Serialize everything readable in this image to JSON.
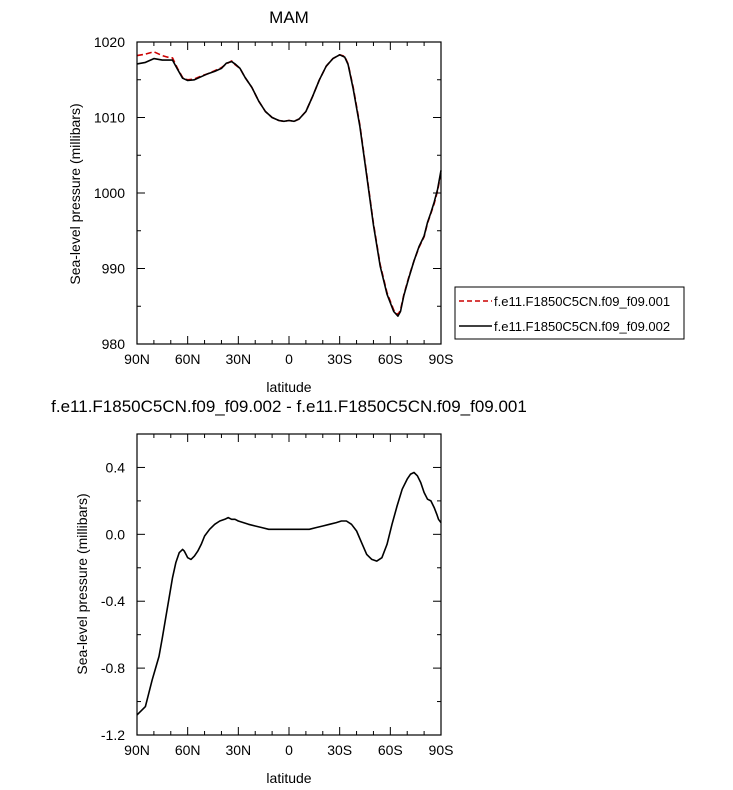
{
  "chart_data": [
    {
      "type": "line",
      "title": "MAM",
      "xlabel": "latitude",
      "ylabel": "Sea-level pressure (millibars)",
      "xlim": [
        90,
        -90
      ],
      "ylim": [
        980,
        1020
      ],
      "x_ticks": [
        90,
        60,
        30,
        0,
        -30,
        -60,
        -90
      ],
      "x_tick_labels": [
        "90N",
        "60N",
        "30N",
        "0",
        "30S",
        "60S",
        "90S"
      ],
      "y_ticks": [
        980,
        990,
        1000,
        1010,
        1020
      ],
      "y_tick_labels": [
        "980",
        "990",
        "1000",
        "1010",
        "1020"
      ],
      "legend_position": "right",
      "series": [
        {
          "name": "f.e11.F1850C5CN.f09_f09.001",
          "color": "#cc0000",
          "dash": "dashed",
          "x": [
            90,
            85,
            80,
            75,
            72,
            69,
            66,
            63,
            60,
            56,
            52,
            48,
            44,
            40,
            37,
            34,
            32,
            29,
            26,
            22,
            18,
            14,
            10,
            6,
            3,
            0,
            -3,
            -6,
            -10,
            -14,
            -18,
            -22,
            -26,
            -30,
            -33,
            -35,
            -38,
            -42,
            -46,
            -50,
            -54,
            -58,
            -62,
            -64.5,
            -66,
            -68,
            -71,
            -74,
            -77,
            -80,
            -82,
            -84,
            -86,
            -88,
            -90
          ],
          "y": [
            1018.2,
            1018.4,
            1018.7,
            1018.2,
            1018.0,
            1017.9,
            1016.5,
            1015.3,
            1015.0,
            1015.1,
            1015.5,
            1015.8,
            1016.2,
            1016.6,
            1017.1,
            1017.5,
            1017.0,
            1016.5,
            1015.3,
            1014.0,
            1012.2,
            1010.8,
            1010.0,
            1009.6,
            1009.5,
            1009.6,
            1009.5,
            1009.8,
            1010.8,
            1012.8,
            1015.0,
            1016.8,
            1017.8,
            1018.3,
            1018.1,
            1017.1,
            1014.0,
            1009.0,
            1002.5,
            996.0,
            990.5,
            986.8,
            984.5,
            983.9,
            984.5,
            986.5,
            988.9,
            991.0,
            992.8,
            994.2,
            996.0,
            997.3,
            998.6,
            1000.3,
            1002.7
          ]
        },
        {
          "name": "f.e11.F1850C5CN.f09_f09.002",
          "color": "#000000",
          "dash": "solid",
          "x": [
            90,
            85,
            80,
            75,
            72,
            69,
            66,
            63,
            60,
            56,
            52,
            48,
            44,
            40,
            37,
            34,
            32,
            29,
            26,
            22,
            18,
            14,
            10,
            6,
            3,
            0,
            -3,
            -6,
            -10,
            -14,
            -18,
            -22,
            -26,
            -30,
            -33,
            -35,
            -38,
            -42,
            -46,
            -50,
            -54,
            -58,
            -62,
            -64.5,
            -66,
            -68,
            -71,
            -74,
            -77,
            -80,
            -82,
            -84,
            -86,
            -88,
            -90
          ],
          "y": [
            1017.1,
            1017.3,
            1017.8,
            1017.6,
            1017.6,
            1017.6,
            1016.4,
            1015.2,
            1014.9,
            1015.0,
            1015.4,
            1015.8,
            1016.1,
            1016.5,
            1017.2,
            1017.4,
            1017.1,
            1016.5,
            1015.3,
            1014.0,
            1012.2,
            1010.8,
            1010.0,
            1009.6,
            1009.5,
            1009.6,
            1009.5,
            1009.8,
            1010.8,
            1012.8,
            1015.0,
            1016.8,
            1017.8,
            1018.3,
            1018.0,
            1017.0,
            1013.8,
            1008.8,
            1002.3,
            995.8,
            990.3,
            986.6,
            984.3,
            983.7,
            984.3,
            986.4,
            988.8,
            991.0,
            992.9,
            994.3,
            996.1,
            997.4,
            998.8,
            1000.5,
            1003.0
          ]
        }
      ]
    },
    {
      "type": "line",
      "title": "f.e11.F1850C5CN.f09_f09.002 - f.e11.F1850C5CN.f09_f09.001",
      "xlabel": "latitude",
      "ylabel": "Sea-level pressure (millibars)",
      "xlim": [
        90,
        -90
      ],
      "ylim": [
        -1.2,
        0.6
      ],
      "x_ticks": [
        90,
        60,
        30,
        0,
        -30,
        -60,
        -90
      ],
      "x_tick_labels": [
        "90N",
        "60N",
        "30N",
        "0",
        "30S",
        "60S",
        "90S"
      ],
      "y_ticks": [
        -1.2,
        -0.8,
        -0.4,
        0.0,
        0.4
      ],
      "y_tick_labels": [
        "-1.2",
        "-0.8",
        "-0.4",
        "0.0",
        "0.4"
      ],
      "series": [
        {
          "color": "#000000",
          "x": [
            90,
            88,
            86,
            85,
            83,
            81,
            79,
            77,
            75,
            73,
            71,
            69,
            67,
            65,
            64,
            63,
            62,
            61,
            60,
            58,
            56,
            54,
            52,
            50,
            47,
            44,
            41,
            38,
            36,
            34,
            32,
            30,
            27,
            24,
            20,
            16,
            12,
            8,
            4,
            0,
            -4,
            -8,
            -12,
            -16,
            -20,
            -24,
            -28,
            -31,
            -34,
            -37,
            -40,
            -43,
            -46,
            -49,
            -52,
            -55,
            -58,
            -61,
            -64,
            -67,
            -70,
            -72,
            -74,
            -76,
            -78,
            -80,
            -82,
            -84,
            -86,
            -87.5,
            -88.5,
            -90
          ],
          "y": [
            -1.08,
            -1.06,
            -1.04,
            -1.03,
            -0.95,
            -0.87,
            -0.8,
            -0.73,
            -0.62,
            -0.5,
            -0.38,
            -0.26,
            -0.17,
            -0.11,
            -0.1,
            -0.09,
            -0.1,
            -0.12,
            -0.14,
            -0.15,
            -0.13,
            -0.1,
            -0.06,
            -0.01,
            0.03,
            0.06,
            0.08,
            0.09,
            0.1,
            0.09,
            0.09,
            0.08,
            0.07,
            0.06,
            0.05,
            0.04,
            0.03,
            0.03,
            0.03,
            0.03,
            0.03,
            0.03,
            0.03,
            0.04,
            0.05,
            0.06,
            0.07,
            0.08,
            0.08,
            0.06,
            0.02,
            -0.05,
            -0.12,
            -0.15,
            -0.16,
            -0.14,
            -0.06,
            0.06,
            0.17,
            0.27,
            0.33,
            0.36,
            0.37,
            0.35,
            0.31,
            0.25,
            0.21,
            0.2,
            0.16,
            0.12,
            0.09,
            0.07
          ]
        }
      ]
    }
  ]
}
